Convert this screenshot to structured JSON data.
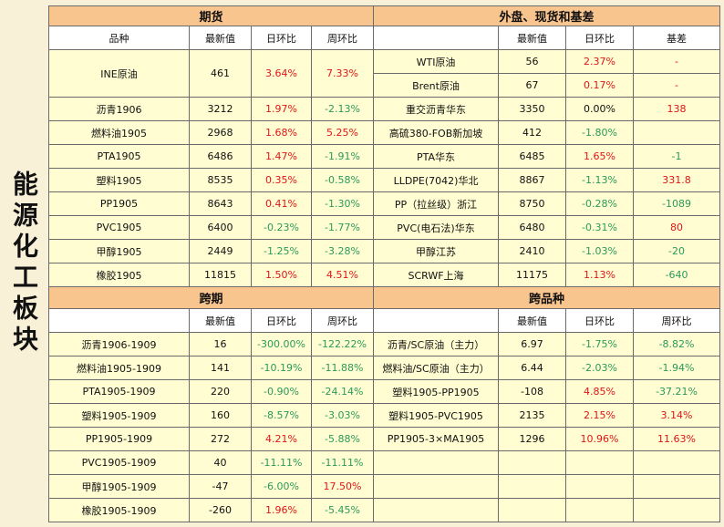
{
  "side_title": "能源化工板块",
  "colors": {
    "up": "#e0151a",
    "down": "#2a9a5c",
    "header": "#f9c58f",
    "row": "#fffdd1"
  },
  "futures": {
    "title": "期货",
    "headers": [
      "品种",
      "最新值",
      "日环比",
      "周环比"
    ],
    "rows": [
      {
        "name": "INE原油",
        "value": "461",
        "day": "3.64%",
        "week": "7.33%",
        "dc": "r",
        "wc": "r"
      },
      {
        "name": "沥青1906",
        "value": "3212",
        "day": "1.97%",
        "week": "-2.13%",
        "dc": "r",
        "wc": "g"
      },
      {
        "name": "燃料油1905",
        "value": "2968",
        "day": "1.68%",
        "week": "5.25%",
        "dc": "r",
        "wc": "r"
      },
      {
        "name": "PTA1905",
        "value": "6486",
        "day": "1.47%",
        "week": "-1.91%",
        "dc": "r",
        "wc": "g"
      },
      {
        "name": "塑料1905",
        "value": "8535",
        "day": "0.35%",
        "week": "-0.58%",
        "dc": "r",
        "wc": "g"
      },
      {
        "name": "PP1905",
        "value": "8643",
        "day": "0.41%",
        "week": "-1.30%",
        "dc": "r",
        "wc": "g"
      },
      {
        "name": "PVC1905",
        "value": "6400",
        "day": "-0.23%",
        "week": "-1.77%",
        "dc": "g",
        "wc": "g"
      },
      {
        "name": "甲醇1905",
        "value": "2449",
        "day": "-1.25%",
        "week": "-3.28%",
        "dc": "g",
        "wc": "g"
      },
      {
        "name": "橡胶1905",
        "value": "11815",
        "day": "1.50%",
        "week": "4.51%",
        "dc": "r",
        "wc": "r"
      }
    ]
  },
  "spot": {
    "title": "外盘、现货和基差",
    "headers": [
      "",
      "最新值",
      "日环比",
      "基差"
    ],
    "rows": [
      {
        "name": "WTI原油",
        "value": "56",
        "day": "2.37%",
        "basis": "-",
        "dc": "r",
        "bc": "r"
      },
      {
        "name": "Brent原油",
        "value": "67",
        "day": "0.17%",
        "basis": "-",
        "dc": "r",
        "bc": "r"
      },
      {
        "name": "重交沥青华东",
        "value": "3350",
        "day": "0.00%",
        "basis": "138",
        "dc": "k",
        "bc": "r"
      },
      {
        "name": "高硫380-FOB新加坡",
        "value": "412",
        "day": "-1.80%",
        "basis": "",
        "dc": "g",
        "bc": "k"
      },
      {
        "name": "PTA华东",
        "value": "6485",
        "day": "1.65%",
        "basis": "-1",
        "dc": "r",
        "bc": "g"
      },
      {
        "name": "LLDPE(7042)华北",
        "value": "8867",
        "day": "-1.13%",
        "basis": "331.8",
        "dc": "g",
        "bc": "r"
      },
      {
        "name": "PP（拉丝级）浙江",
        "value": "8750",
        "day": "-0.28%",
        "basis": "-1089",
        "dc": "g",
        "bc": "g"
      },
      {
        "name": "PVC(电石法)华东",
        "value": "6480",
        "day": "-0.31%",
        "basis": "80",
        "dc": "g",
        "bc": "r"
      },
      {
        "name": "甲醇江苏",
        "value": "2410",
        "day": "-1.03%",
        "basis": "-20",
        "dc": "g",
        "bc": "g"
      },
      {
        "name": "SCRWF上海",
        "value": "11175",
        "day": "1.13%",
        "basis": "-640",
        "dc": "r",
        "bc": "g"
      }
    ]
  },
  "spread": {
    "title": "跨期",
    "headers": [
      "",
      "最新值",
      "日环比",
      "周环比"
    ],
    "rows": [
      {
        "name": "沥青1906-1909",
        "value": "16",
        "day": "-300.00%",
        "week": "-122.22%",
        "dc": "g",
        "wc": "g"
      },
      {
        "name": "燃料油1905-1909",
        "value": "141",
        "day": "-10.19%",
        "week": "-11.88%",
        "dc": "g",
        "wc": "g"
      },
      {
        "name": "PTA1905-1909",
        "value": "220",
        "day": "-0.90%",
        "week": "-24.14%",
        "dc": "g",
        "wc": "g"
      },
      {
        "name": "塑料1905-1909",
        "value": "160",
        "day": "-8.57%",
        "week": "-3.03%",
        "dc": "g",
        "wc": "g"
      },
      {
        "name": "PP1905-1909",
        "value": "272",
        "day": "4.21%",
        "week": "-5.88%",
        "dc": "r",
        "wc": "g"
      },
      {
        "name": "PVC1905-1909",
        "value": "40",
        "day": "-11.11%",
        "week": "-11.11%",
        "dc": "g",
        "wc": "g"
      },
      {
        "name": "甲醇1905-1909",
        "value": "-47",
        "day": "-6.00%",
        "week": "17.50%",
        "dc": "g",
        "wc": "r"
      },
      {
        "name": "橡胶1905-1909",
        "value": "-260",
        "day": "1.96%",
        "week": "-5.45%",
        "dc": "r",
        "wc": "g"
      }
    ]
  },
  "cross": {
    "title": "跨品种",
    "headers": [
      "",
      "最新值",
      "日环比",
      "周环比"
    ],
    "rows": [
      {
        "name": "沥青/SC原油（主力）",
        "value": "6.97",
        "day": "-1.75%",
        "week": "-8.82%",
        "dc": "g",
        "wc": "g"
      },
      {
        "name": "燃料油/SC原油（主力）",
        "value": "6.44",
        "day": "-2.03%",
        "week": "-1.94%",
        "dc": "g",
        "wc": "g"
      },
      {
        "name": "塑料1905-PP1905",
        "value": "-108",
        "day": "4.85%",
        "week": "-37.21%",
        "dc": "r",
        "wc": "g"
      },
      {
        "name": "塑料1905-PVC1905",
        "value": "2135",
        "day": "2.15%",
        "week": "3.14%",
        "dc": "r",
        "wc": "r"
      },
      {
        "name": "PP1905-3×MA1905",
        "value": "1296",
        "day": "10.96%",
        "week": "11.63%",
        "dc": "r",
        "wc": "r"
      },
      {
        "name": "",
        "value": "",
        "day": "",
        "week": "",
        "dc": "k",
        "wc": "k"
      },
      {
        "name": "",
        "value": "",
        "day": "",
        "week": "",
        "dc": "k",
        "wc": "k"
      },
      {
        "name": "",
        "value": "",
        "day": "",
        "week": "",
        "dc": "k",
        "wc": "k"
      }
    ]
  }
}
